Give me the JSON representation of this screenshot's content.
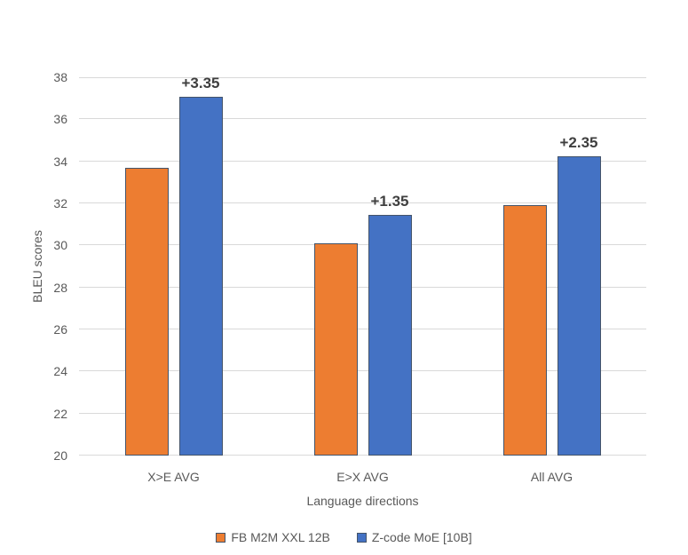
{
  "chart_data": {
    "type": "bar",
    "title": "",
    "categories": [
      "X>E AVG",
      "E>X AVG",
      "All AVG"
    ],
    "series": [
      {
        "name": "FB M2M XXL 12B",
        "color": "#ED7D31",
        "values": [
          33.7,
          30.1,
          31.9
        ]
      },
      {
        "name": "Z-code MoE [10B]",
        "color": "#4472C4",
        "values": [
          37.05,
          31.45,
          34.25
        ]
      }
    ],
    "annotations": [
      {
        "category": "X>E AVG",
        "series": "Z-code MoE [10B]",
        "label": "+3.35"
      },
      {
        "category": "E>X AVG",
        "series": "Z-code MoE [10B]",
        "label": "+1.35"
      },
      {
        "category": "All AVG",
        "series": "Z-code MoE [10B]",
        "label": "+2.35"
      }
    ],
    "xlabel": "Language directions",
    "ylabel": "BLEU scores",
    "ylim": [
      20,
      38
    ],
    "ytick_step": 2,
    "grid": "horizontal",
    "legend_position": "bottom",
    "bar_border_color": "#44546A",
    "gridline_color": "#D9D9D9",
    "text_color": "#595959",
    "annotation_color": "#3F3F3F"
  }
}
